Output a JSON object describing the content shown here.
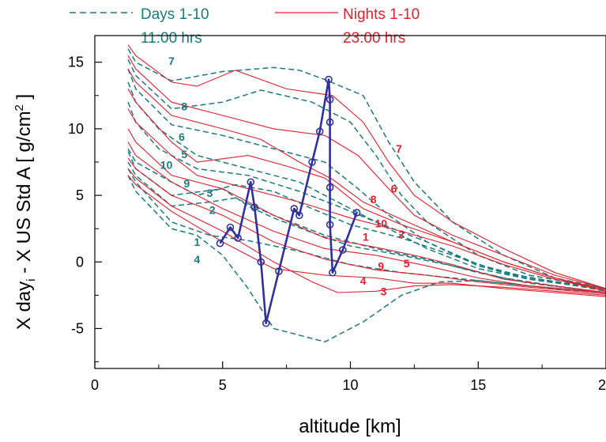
{
  "colors": {
    "day": "#1a7a82",
    "night": "#e0202c",
    "path": "#2e309c",
    "axis": "#000000"
  },
  "legend": {
    "day": {
      "line1": "Days 1-10",
      "line2": "11:00 hrs"
    },
    "night": {
      "line1": "Nights 1-10",
      "line2": "23:00 hrs"
    }
  },
  "chart_data": {
    "type": "line",
    "xlabel": "altitude [km]",
    "ylabel": "X day",
    "ylabel_sub": "i",
    "ylabel_rest": " - X US Std A  [ g/cm",
    "ylabel_sup": "2",
    "ylabel_end": " ]",
    "xlim": [
      0,
      20
    ],
    "ylim": [
      -8,
      17
    ],
    "x_ticks": [
      0,
      5,
      10,
      15,
      20
    ],
    "y_ticks": [
      -5,
      0,
      5,
      10,
      15
    ],
    "day_series": [
      {
        "label": "7",
        "points": [
          [
            1.3,
            16
          ],
          [
            1.6,
            15
          ],
          [
            3,
            13.6
          ],
          [
            5,
            14.3
          ],
          [
            7,
            14.6
          ],
          [
            8,
            14.4
          ],
          [
            9,
            13.7
          ],
          [
            10.5,
            12.5
          ],
          [
            11.5,
            9
          ],
          [
            12.5,
            6
          ],
          [
            14,
            3
          ],
          [
            16,
            0.5
          ],
          [
            18,
            -1.2
          ],
          [
            20,
            -2
          ]
        ]
      },
      {
        "label": "8",
        "points": [
          [
            1.3,
            15.2
          ],
          [
            1.6,
            14
          ],
          [
            3,
            11.5
          ],
          [
            5,
            12
          ],
          [
            6.5,
            12.9
          ],
          [
            8.5,
            12
          ],
          [
            10,
            10.5
          ],
          [
            11,
            8
          ],
          [
            12,
            5
          ],
          [
            13,
            3
          ],
          [
            15,
            0.5
          ],
          [
            17,
            -1
          ],
          [
            20,
            -2
          ]
        ]
      },
      {
        "label": "6",
        "points": [
          [
            1.3,
            14.5
          ],
          [
            1.6,
            13
          ],
          [
            3,
            10.3
          ],
          [
            5,
            9.5
          ],
          [
            7,
            8.5
          ],
          [
            9,
            7.5
          ],
          [
            10.3,
            5.5
          ],
          [
            11.5,
            3.5
          ],
          [
            13,
            1.5
          ],
          [
            15,
            -0.2
          ],
          [
            17,
            -1.2
          ],
          [
            20,
            -2
          ]
        ]
      },
      {
        "label": "5",
        "points": [
          [
            1.3,
            13.5
          ],
          [
            1.6,
            12
          ],
          [
            2.5,
            10
          ],
          [
            4,
            8
          ],
          [
            6,
            7
          ],
          [
            8,
            6
          ],
          [
            10,
            4
          ],
          [
            11.5,
            2.5
          ],
          [
            13,
            1
          ],
          [
            15,
            -0.5
          ],
          [
            17,
            -1.3
          ],
          [
            20,
            -2
          ]
        ]
      },
      {
        "label": "10",
        "points": [
          [
            1.3,
            12
          ],
          [
            1.6,
            10.5
          ],
          [
            2.5,
            8.5
          ],
          [
            4,
            7
          ],
          [
            6,
            6.5
          ],
          [
            8,
            5.3
          ],
          [
            9.5,
            4.2
          ],
          [
            11,
            3
          ],
          [
            13,
            1.5
          ],
          [
            15,
            -0.3
          ],
          [
            17,
            -1.3
          ],
          [
            20,
            -2.1
          ]
        ]
      },
      {
        "label": "9",
        "points": [
          [
            1.3,
            8.5
          ],
          [
            1.6,
            7.5
          ],
          [
            3,
            6
          ],
          [
            4,
            5
          ],
          [
            5.5,
            5.8
          ],
          [
            7,
            5.3
          ],
          [
            8.5,
            4
          ],
          [
            10,
            2.8
          ],
          [
            12,
            1.8
          ],
          [
            14,
            0.5
          ],
          [
            16,
            -0.8
          ],
          [
            18,
            -1.5
          ],
          [
            20,
            -2.2
          ]
        ]
      },
      {
        "label": "3",
        "points": [
          [
            1.3,
            8.3
          ],
          [
            1.6,
            7
          ],
          [
            3,
            5
          ],
          [
            5,
            5.5
          ],
          [
            6,
            4.2
          ],
          [
            7,
            3.3
          ],
          [
            8.5,
            2.2
          ],
          [
            10,
            1.2
          ],
          [
            12,
            0.5
          ],
          [
            14,
            -0.3
          ],
          [
            16,
            -1.2
          ],
          [
            18,
            -1.8
          ],
          [
            20,
            -2.3
          ]
        ]
      },
      {
        "label": "2",
        "points": [
          [
            1.3,
            7.5
          ],
          [
            1.6,
            6.5
          ],
          [
            3,
            4.2
          ],
          [
            4.5,
            4.5
          ],
          [
            5.5,
            4.8
          ],
          [
            7,
            3.5
          ],
          [
            9,
            2
          ],
          [
            11,
            1
          ],
          [
            13,
            0.2
          ],
          [
            15,
            -0.8
          ],
          [
            17,
            -1.6
          ],
          [
            20,
            -2.3
          ]
        ]
      },
      {
        "label": "1",
        "points": [
          [
            1.3,
            7
          ],
          [
            1.6,
            6
          ],
          [
            3,
            3
          ],
          [
            4.5,
            2
          ],
          [
            6,
            1.6
          ],
          [
            8,
            0.8
          ],
          [
            10,
            -0.2
          ],
          [
            12,
            -0.8
          ],
          [
            14,
            -1.2
          ],
          [
            16,
            -1.6
          ],
          [
            18,
            -2
          ],
          [
            20,
            -2.3
          ]
        ]
      },
      {
        "label": "4",
        "points": [
          [
            1.3,
            6.5
          ],
          [
            1.6,
            5.3
          ],
          [
            3,
            2.5
          ],
          [
            4,
            2
          ],
          [
            5,
            0.5
          ],
          [
            6,
            -2
          ],
          [
            7,
            -5
          ],
          [
            9,
            -6
          ],
          [
            10.5,
            -4.5
          ],
          [
            12,
            -2.5
          ],
          [
            13.5,
            -1.5
          ],
          [
            15,
            -1.4
          ],
          [
            17,
            -1.8
          ],
          [
            20,
            -2.3
          ]
        ]
      }
    ],
    "night_series": [
      {
        "label": "7",
        "points": [
          [
            1.3,
            16.3
          ],
          [
            1.6,
            15.5
          ],
          [
            3,
            13.5
          ],
          [
            4,
            13.2
          ],
          [
            5.5,
            14.4
          ],
          [
            7.5,
            13
          ],
          [
            9.3,
            12.5
          ],
          [
            10.5,
            10.5
          ],
          [
            11.5,
            7.5
          ],
          [
            12.5,
            5
          ],
          [
            14,
            3
          ],
          [
            16,
            1
          ],
          [
            18,
            -0.8
          ],
          [
            20,
            -2
          ]
        ]
      },
      {
        "label": "6",
        "points": [
          [
            1.3,
            15.5
          ],
          [
            1.6,
            14.5
          ],
          [
            3,
            12
          ],
          [
            5,
            11
          ],
          [
            7,
            10
          ],
          [
            9,
            9.5
          ],
          [
            10.3,
            8
          ],
          [
            11.5,
            5.5
          ],
          [
            12.5,
            3.5
          ],
          [
            14,
            2
          ],
          [
            16,
            0.5
          ],
          [
            18,
            -1
          ],
          [
            20,
            -2
          ]
        ]
      },
      {
        "label": "8",
        "points": [
          [
            1.3,
            14.5
          ],
          [
            1.6,
            13.5
          ],
          [
            3,
            11
          ],
          [
            5,
            10
          ],
          [
            6.5,
            9.2
          ],
          [
            8,
            7.5
          ],
          [
            9.3,
            6.2
          ],
          [
            10.5,
            4.5
          ],
          [
            12,
            3.2
          ],
          [
            14,
            1.5
          ],
          [
            16,
            0
          ],
          [
            18,
            -1.2
          ],
          [
            20,
            -2.1
          ]
        ]
      },
      {
        "label": "10",
        "points": [
          [
            1.3,
            13
          ],
          [
            1.6,
            12
          ],
          [
            3,
            9
          ],
          [
            4,
            7.5
          ],
          [
            6,
            8
          ],
          [
            7.5,
            7.2
          ],
          [
            9,
            6.3
          ],
          [
            10.5,
            4
          ],
          [
            12,
            2.8
          ],
          [
            14,
            1.5
          ],
          [
            16,
            0
          ],
          [
            18,
            -1.2
          ],
          [
            20,
            -2.2
          ]
        ]
      },
      {
        "label": "2",
        "points": [
          [
            1.3,
            11.5
          ],
          [
            1.6,
            10.5
          ],
          [
            3,
            8
          ],
          [
            4,
            6.5
          ],
          [
            6,
            5.5
          ],
          [
            8,
            4.5
          ],
          [
            10,
            3.3
          ],
          [
            12,
            2.3
          ],
          [
            14,
            1.2
          ],
          [
            16,
            -0.2
          ],
          [
            18,
            -1.3
          ],
          [
            20,
            -2.2
          ]
        ]
      },
      {
        "label": "1",
        "points": [
          [
            1.3,
            10
          ],
          [
            1.6,
            9
          ],
          [
            3,
            6.5
          ],
          [
            5,
            5.5
          ],
          [
            7,
            3.5
          ],
          [
            9,
            1.8
          ],
          [
            11,
            1.1
          ],
          [
            12.5,
            0.5
          ],
          [
            14,
            -0.2
          ],
          [
            16,
            -1.3
          ],
          [
            18,
            -1.8
          ],
          [
            20,
            -2.3
          ]
        ]
      },
      {
        "label": "5",
        "points": [
          [
            1.3,
            9
          ],
          [
            1.6,
            8
          ],
          [
            3,
            6
          ],
          [
            5,
            4
          ],
          [
            7,
            2.3
          ],
          [
            9,
            1
          ],
          [
            11,
            0.5
          ],
          [
            13,
            -0.3
          ],
          [
            15,
            -1.2
          ],
          [
            17,
            -1.8
          ],
          [
            20,
            -2.3
          ]
        ]
      },
      {
        "label": "9",
        "points": [
          [
            1.3,
            7.8
          ],
          [
            1.6,
            7
          ],
          [
            3,
            5
          ],
          [
            5,
            3.5
          ],
          [
            7,
            1.5
          ],
          [
            9,
            0.2
          ],
          [
            11,
            -0.6
          ],
          [
            13,
            -1
          ],
          [
            15,
            -1.5
          ],
          [
            17,
            -1.9
          ],
          [
            20,
            -2.4
          ]
        ]
      },
      {
        "label": "4",
        "points": [
          [
            1.3,
            7
          ],
          [
            1.6,
            6.3
          ],
          [
            3,
            4.2
          ],
          [
            5,
            2.3
          ],
          [
            7,
            0
          ],
          [
            8.5,
            -1.5
          ],
          [
            9.5,
            -2.3
          ],
          [
            11,
            -2.2
          ],
          [
            12.5,
            -1.8
          ],
          [
            14,
            -1.7
          ],
          [
            16,
            -1.9
          ],
          [
            18,
            -2.2
          ],
          [
            20,
            -2.5
          ]
        ]
      },
      {
        "label": "3",
        "points": [
          [
            1.3,
            6.5
          ],
          [
            1.6,
            5.8
          ],
          [
            3,
            3.8
          ],
          [
            5,
            1.5
          ],
          [
            7,
            -0.5
          ],
          [
            9,
            -1
          ],
          [
            11,
            -1.2
          ],
          [
            12.5,
            -1.6
          ],
          [
            14,
            -1.6
          ],
          [
            16,
            -2
          ],
          [
            18,
            -2.3
          ],
          [
            20,
            -2.6
          ]
        ]
      }
    ],
    "path_points": [
      [
        4.9,
        1.4
      ],
      [
        5.3,
        2.6
      ],
      [
        5.6,
        1.8
      ],
      [
        6.1,
        6
      ],
      [
        6.25,
        4.1
      ],
      [
        6.5,
        0
      ],
      [
        6.7,
        -4.6
      ],
      [
        7.2,
        -0.7
      ],
      [
        7.8,
        4
      ],
      [
        8.0,
        3.5
      ],
      [
        8.5,
        7.5
      ],
      [
        8.8,
        9.8
      ],
      [
        9.15,
        13.7
      ],
      [
        9.2,
        12.2
      ],
      [
        9.2,
        10.5
      ],
      [
        9.2,
        5.6
      ],
      [
        9.2,
        2.8
      ],
      [
        9.3,
        -0.8
      ],
      [
        9.7,
        0.9
      ],
      [
        10.25,
        3.7
      ]
    ],
    "day_label_positions": {
      "7": [
        3.0,
        14.8
      ],
      "8": [
        3.5,
        11.4
      ],
      "6": [
        3.4,
        9.1
      ],
      "5": [
        3.5,
        7.8
      ],
      "10": [
        2.8,
        7.0
      ],
      "9": [
        3.6,
        5.6
      ],
      "3": [
        4.5,
        4.9
      ],
      "2": [
        4.6,
        3.6
      ],
      "1": [
        4.0,
        1.2
      ],
      "4": [
        4.0,
        -0.1
      ]
    },
    "night_label_positions": {
      "7": [
        11.9,
        8.2
      ],
      "6": [
        11.7,
        5.2
      ],
      "8": [
        10.9,
        4.4
      ],
      "10": [
        11.2,
        2.6
      ],
      "2": [
        12.0,
        1.8
      ],
      "1": [
        10.6,
        1.6
      ],
      "5": [
        12.2,
        -0.4
      ],
      "9": [
        11.2,
        -0.6
      ],
      "4": [
        10.5,
        -1.7
      ],
      "3": [
        11.3,
        -2.5
      ]
    }
  }
}
